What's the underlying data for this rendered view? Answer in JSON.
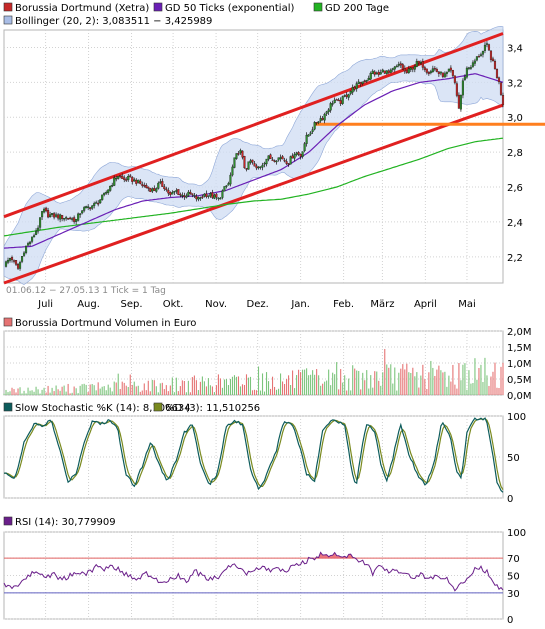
{
  "chart_data": [
    {
      "id": "price",
      "type": "line",
      "legend": [
        {
          "label": "Borussia Dortmund (Xetra)",
          "color": "#c62828"
        },
        {
          "label": "GD 50 Ticks (exponential)",
          "color": "#6a1fb5"
        },
        {
          "label": "GD 200 Tage",
          "color": "#22b322"
        },
        {
          "label": "Bollinger (20, 2): 3,083511 − 3,425989",
          "color": "#a9bde6"
        }
      ],
      "period_label": "01.06.12 − 27.05.13   1 Tick = 1 Tag",
      "y_ticks": [
        "2,2",
        "2,4",
        "2,6",
        "2,8",
        "3,0",
        "3,2",
        "3,4"
      ],
      "ylim": [
        2.05,
        3.5
      ],
      "x_labels": [
        "Juli",
        "Aug.",
        "Sep.",
        "Okt.",
        "Nov.",
        "Dez.",
        "Jan.",
        "Feb.",
        "März",
        "April",
        "Mai"
      ],
      "x_label_days": [
        30,
        61,
        92,
        122,
        153,
        183,
        214,
        245,
        273,
        304,
        334
      ],
      "x_range_days": [
        0,
        360
      ],
      "close_anchors": [
        [
          0,
          2.15
        ],
        [
          5,
          2.2
        ],
        [
          10,
          2.13
        ],
        [
          15,
          2.25
        ],
        [
          20,
          2.3
        ],
        [
          25,
          2.38
        ],
        [
          28,
          2.47
        ],
        [
          32,
          2.44
        ],
        [
          40,
          2.43
        ],
        [
          48,
          2.42
        ],
        [
          52,
          2.41
        ],
        [
          56,
          2.47
        ],
        [
          60,
          2.48
        ],
        [
          66,
          2.5
        ],
        [
          72,
          2.55
        ],
        [
          77,
          2.61
        ],
        [
          82,
          2.67
        ],
        [
          86,
          2.64
        ],
        [
          90,
          2.65
        ],
        [
          96,
          2.63
        ],
        [
          102,
          2.6
        ],
        [
          108,
          2.58
        ],
        [
          112,
          2.62
        ],
        [
          116,
          2.6
        ],
        [
          120,
          2.55
        ],
        [
          124,
          2.58
        ],
        [
          128,
          2.55
        ],
        [
          134,
          2.56
        ],
        [
          140,
          2.53
        ],
        [
          145,
          2.56
        ],
        [
          150,
          2.55
        ],
        [
          155,
          2.53
        ],
        [
          158,
          2.58
        ],
        [
          162,
          2.62
        ],
        [
          166,
          2.75
        ],
        [
          170,
          2.82
        ],
        [
          174,
          2.7
        ],
        [
          178,
          2.75
        ],
        [
          182,
          2.7
        ],
        [
          186,
          2.73
        ],
        [
          190,
          2.77
        ],
        [
          194,
          2.76
        ],
        [
          200,
          2.77
        ],
        [
          205,
          2.74
        ],
        [
          210,
          2.8
        ],
        [
          214,
          2.78
        ],
        [
          218,
          2.88
        ],
        [
          222,
          2.93
        ],
        [
          226,
          2.98
        ],
        [
          230,
          3.0
        ],
        [
          234,
          3.05
        ],
        [
          238,
          3.1
        ],
        [
          242,
          3.08
        ],
        [
          246,
          3.12
        ],
        [
          250,
          3.15
        ],
        [
          254,
          3.18
        ],
        [
          258,
          3.2
        ],
        [
          262,
          3.22
        ],
        [
          266,
          3.26
        ],
        [
          270,
          3.24
        ],
        [
          274,
          3.27
        ],
        [
          278,
          3.25
        ],
        [
          282,
          3.28
        ],
        [
          286,
          3.3
        ],
        [
          290,
          3.25
        ],
        [
          294,
          3.28
        ],
        [
          298,
          3.31
        ],
        [
          302,
          3.3
        ],
        [
          306,
          3.26
        ],
        [
          310,
          3.28
        ],
        [
          314,
          3.25
        ],
        [
          318,
          3.24
        ],
        [
          322,
          3.27
        ],
        [
          326,
          3.18
        ],
        [
          328,
          3.04
        ],
        [
          331,
          3.2
        ],
        [
          334,
          3.28
        ],
        [
          338,
          3.3
        ],
        [
          342,
          3.35
        ],
        [
          346,
          3.38
        ],
        [
          348,
          3.42
        ],
        [
          351,
          3.35
        ],
        [
          354,
          3.28
        ],
        [
          357,
          3.2
        ],
        [
          360,
          3.08
        ]
      ],
      "ema50_anchors": [
        [
          0,
          2.25
        ],
        [
          20,
          2.26
        ],
        [
          40,
          2.33
        ],
        [
          60,
          2.4
        ],
        [
          80,
          2.47
        ],
        [
          100,
          2.52
        ],
        [
          120,
          2.54
        ],
        [
          140,
          2.55
        ],
        [
          160,
          2.58
        ],
        [
          180,
          2.64
        ],
        [
          200,
          2.7
        ],
        [
          220,
          2.8
        ],
        [
          240,
          2.95
        ],
        [
          260,
          3.07
        ],
        [
          280,
          3.15
        ],
        [
          300,
          3.2
        ],
        [
          320,
          3.22
        ],
        [
          340,
          3.25
        ],
        [
          360,
          3.2
        ]
      ],
      "sma200_anchors": [
        [
          0,
          2.32
        ],
        [
          40,
          2.37
        ],
        [
          80,
          2.41
        ],
        [
          120,
          2.45
        ],
        [
          160,
          2.5
        ],
        [
          180,
          2.52
        ],
        [
          200,
          2.53
        ],
        [
          220,
          2.56
        ],
        [
          240,
          2.6
        ],
        [
          260,
          2.66
        ],
        [
          280,
          2.71
        ],
        [
          300,
          2.76
        ],
        [
          320,
          2.82
        ],
        [
          340,
          2.86
        ],
        [
          360,
          2.88
        ]
      ],
      "channel_upper": [
        [
          0,
          2.43
        ],
        [
          360,
          3.48
        ]
      ],
      "channel_lower": [
        [
          0,
          2.05
        ],
        [
          360,
          3.07
        ]
      ],
      "horizontal_line": 2.96
    },
    {
      "id": "volume",
      "type": "bar",
      "legend": [
        {
          "label": "Borussia Dortmund Volumen in Euro",
          "color": "#e57373"
        }
      ],
      "y_ticks": [
        "0,0M",
        "0,5M",
        "1,0M",
        "1,5M",
        "2,0M"
      ],
      "ylim": [
        0,
        2.0
      ]
    },
    {
      "id": "stochastic",
      "type": "line",
      "legend": [
        {
          "label": "Slow Stochastic %K (14): 8,106634",
          "color": "#0d5c5c"
        },
        {
          "label": "%D (3): 11,510256",
          "color": "#7a8a1f"
        }
      ],
      "y_ticks": [
        "0",
        "50",
        "100"
      ],
      "ylim": [
        0,
        100
      ],
      "k_anchors": [
        [
          0,
          30
        ],
        [
          8,
          25
        ],
        [
          15,
          70
        ],
        [
          22,
          90
        ],
        [
          28,
          88
        ],
        [
          34,
          95
        ],
        [
          40,
          60
        ],
        [
          46,
          20
        ],
        [
          52,
          30
        ],
        [
          58,
          70
        ],
        [
          64,
          95
        ],
        [
          70,
          90
        ],
        [
          76,
          95
        ],
        [
          82,
          85
        ],
        [
          88,
          30
        ],
        [
          94,
          15
        ],
        [
          100,
          40
        ],
        [
          106,
          70
        ],
        [
          112,
          40
        ],
        [
          118,
          20
        ],
        [
          124,
          45
        ],
        [
          130,
          80
        ],
        [
          136,
          90
        ],
        [
          142,
          40
        ],
        [
          148,
          15
        ],
        [
          154,
          30
        ],
        [
          160,
          85
        ],
        [
          166,
          95
        ],
        [
          172,
          90
        ],
        [
          178,
          35
        ],
        [
          184,
          10
        ],
        [
          190,
          30
        ],
        [
          196,
          55
        ],
        [
          202,
          95
        ],
        [
          208,
          90
        ],
        [
          214,
          60
        ],
        [
          218,
          30
        ],
        [
          224,
          20
        ],
        [
          230,
          85
        ],
        [
          236,
          95
        ],
        [
          242,
          92
        ],
        [
          246,
          90
        ],
        [
          250,
          40
        ],
        [
          254,
          15
        ],
        [
          258,
          60
        ],
        [
          262,
          92
        ],
        [
          268,
          80
        ],
        [
          272,
          40
        ],
        [
          276,
          20
        ],
        [
          280,
          45
        ],
        [
          286,
          92
        ],
        [
          292,
          55
        ],
        [
          298,
          30
        ],
        [
          304,
          15
        ],
        [
          310,
          40
        ],
        [
          316,
          95
        ],
        [
          322,
          75
        ],
        [
          326,
          35
        ],
        [
          330,
          25
        ],
        [
          334,
          80
        ],
        [
          338,
          95
        ],
        [
          344,
          98
        ],
        [
          348,
          95
        ],
        [
          352,
          60
        ],
        [
          356,
          15
        ],
        [
          360,
          8
        ]
      ]
    },
    {
      "id": "rsi",
      "type": "line",
      "legend": [
        {
          "label": "RSI (14): 30,779909",
          "color": "#6a1f8a"
        }
      ],
      "y_ticks": [
        "0",
        "30",
        "50",
        "70",
        "100"
      ],
      "ylim": [
        0,
        100
      ],
      "guides": [
        70,
        30
      ],
      "rsi_anchors": [
        [
          0,
          40
        ],
        [
          6,
          35
        ],
        [
          12,
          42
        ],
        [
          18,
          50
        ],
        [
          24,
          55
        ],
        [
          30,
          48
        ],
        [
          36,
          52
        ],
        [
          42,
          45
        ],
        [
          48,
          50
        ],
        [
          54,
          55
        ],
        [
          60,
          52
        ],
        [
          66,
          60
        ],
        [
          72,
          58
        ],
        [
          78,
          62
        ],
        [
          84,
          55
        ],
        [
          90,
          50
        ],
        [
          96,
          45
        ],
        [
          102,
          52
        ],
        [
          108,
          48
        ],
        [
          114,
          40
        ],
        [
          120,
          45
        ],
        [
          126,
          50
        ],
        [
          132,
          42
        ],
        [
          138,
          55
        ],
        [
          144,
          48
        ],
        [
          150,
          45
        ],
        [
          156,
          50
        ],
        [
          162,
          60
        ],
        [
          168,
          62
        ],
        [
          174,
          52
        ],
        [
          180,
          55
        ],
        [
          186,
          60
        ],
        [
          192,
          55
        ],
        [
          198,
          58
        ],
        [
          204,
          55
        ],
        [
          210,
          62
        ],
        [
          216,
          65
        ],
        [
          222,
          70
        ],
        [
          226,
          72
        ],
        [
          230,
          75
        ],
        [
          234,
          74
        ],
        [
          238,
          76
        ],
        [
          242,
          73
        ],
        [
          246,
          71
        ],
        [
          250,
          72
        ],
        [
          254,
          69
        ],
        [
          258,
          66
        ],
        [
          262,
          64
        ],
        [
          266,
          52
        ],
        [
          270,
          60
        ],
        [
          276,
          55
        ],
        [
          282,
          58
        ],
        [
          288,
          52
        ],
        [
          294,
          48
        ],
        [
          300,
          52
        ],
        [
          306,
          45
        ],
        [
          312,
          50
        ],
        [
          318,
          48
        ],
        [
          322,
          40
        ],
        [
          326,
          30
        ],
        [
          330,
          42
        ],
        [
          336,
          50
        ],
        [
          342,
          60
        ],
        [
          348,
          55
        ],
        [
          354,
          40
        ],
        [
          360,
          31
        ]
      ]
    }
  ]
}
